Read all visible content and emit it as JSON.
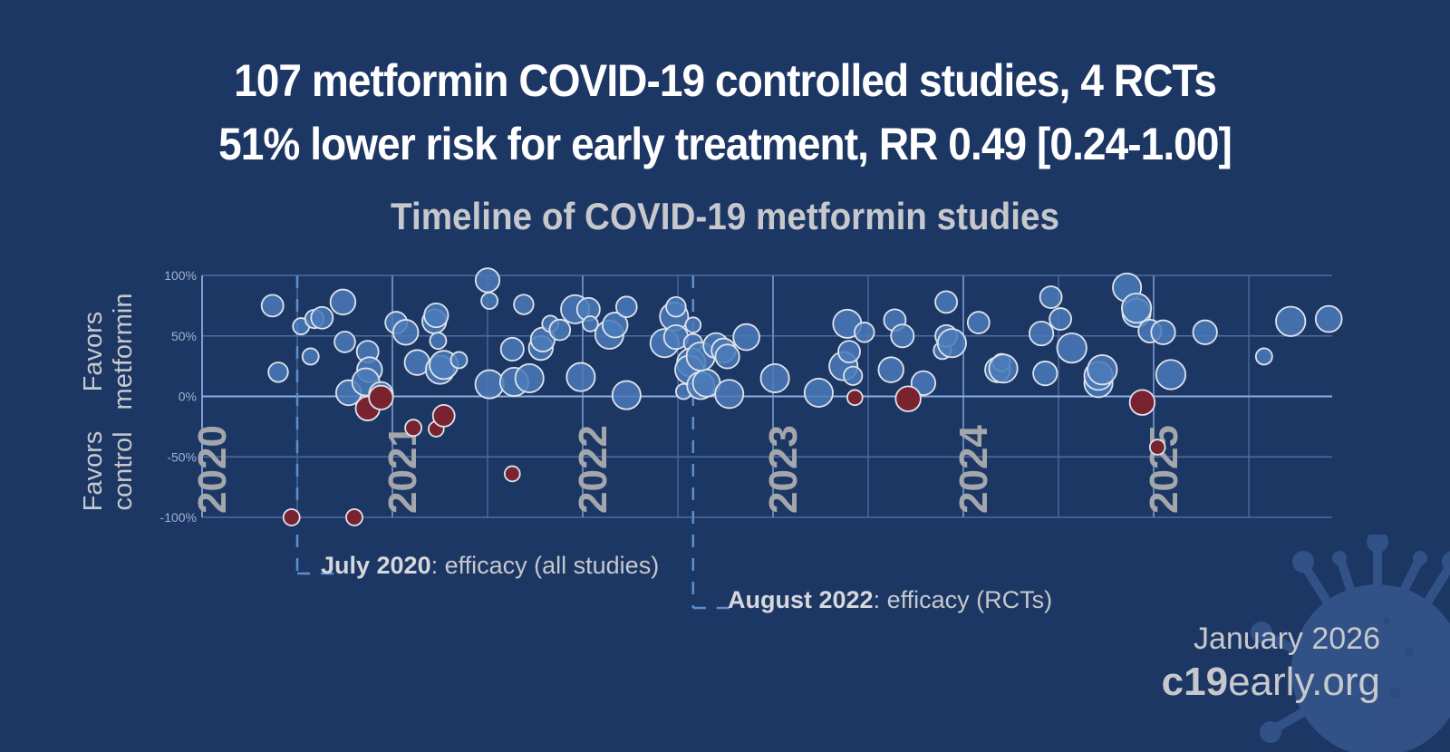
{
  "header": {
    "line1": "107 metformin COVID-19 controlled studies, 4 RCTs",
    "line2": "51% lower risk for early treatment, RR 0.49 [0.24-1.00]"
  },
  "y_side_labels": {
    "top_line1": "Favors",
    "top_line2": "metformin",
    "bottom_line1": "Favors",
    "bottom_line2": "control"
  },
  "annotations": [
    {
      "bold": "July 2020",
      "rest": ": efficacy (all studies)",
      "date": 2020.5
    },
    {
      "bold": "August 2022",
      "rest": ": efficacy (RCTs)",
      "date": 2022.58
    }
  ],
  "footer": {
    "date": "January 2026",
    "site_bold": "c19",
    "site_rest": "early.org",
    "icon": "virus-icon"
  },
  "colors": {
    "background": "#1d3765",
    "positive": "#4a7ab8",
    "negative": "#7a2330",
    "bubble_stroke": "#dfe3ea",
    "gridline": "#4f6da0",
    "zero_line": "#8db0e0",
    "milestone": "#5a8fd0",
    "year_label": "#a3a6ab"
  },
  "chart_data": {
    "type": "scatter",
    "title": "Timeline of COVID-19 metformin studies",
    "xlabel": "",
    "ylabel": "Favors metformin / Favors control",
    "xlim": [
      2020.0,
      2025.95
    ],
    "ylim": [
      -100,
      100
    ],
    "yticks": [
      100,
      50,
      0,
      -50,
      -100
    ],
    "ytick_labels": [
      "100%",
      "50%",
      "0%",
      "-50%",
      "-100%"
    ],
    "year_labels": [
      "2020",
      "2021",
      "2022",
      "2023",
      "2024",
      "2025"
    ],
    "year_label_positions": [
      2020.0,
      2021.0,
      2022.0,
      2023.0,
      2024.0,
      2025.0
    ],
    "grid": true,
    "milestones": [
      2020.5,
      2022.58
    ],
    "points": [
      {
        "x": 2020.37,
        "y": 75,
        "s": 1.0
      },
      {
        "x": 2020.4,
        "y": 20,
        "s": 0.9
      },
      {
        "x": 2020.52,
        "y": 58,
        "s": 0.75
      },
      {
        "x": 2020.57,
        "y": 33,
        "s": 0.75
      },
      {
        "x": 2020.59,
        "y": 64,
        "s": 0.85
      },
      {
        "x": 2020.63,
        "y": 65,
        "s": 1.0
      },
      {
        "x": 2020.74,
        "y": 78,
        "s": 1.15
      },
      {
        "x": 2020.75,
        "y": 45,
        "s": 0.95
      },
      {
        "x": 2020.77,
        "y": 3,
        "s": 1.15
      },
      {
        "x": 2020.87,
        "y": 37,
        "s": 1.0
      },
      {
        "x": 2020.88,
        "y": 22,
        "s": 1.15
      },
      {
        "x": 2020.86,
        "y": 12,
        "s": 1.25
      },
      {
        "x": 2020.94,
        "y": 2,
        "s": 1.1
      },
      {
        "x": 2021.02,
        "y": 61,
        "s": 1.0
      },
      {
        "x": 2021.07,
        "y": 53,
        "s": 1.15
      },
      {
        "x": 2021.13,
        "y": 28,
        "s": 1.15
      },
      {
        "x": 2021.22,
        "y": 62,
        "s": 1.1
      },
      {
        "x": 2021.23,
        "y": 67,
        "s": 1.1
      },
      {
        "x": 2021.24,
        "y": 46,
        "s": 0.75
      },
      {
        "x": 2021.25,
        "y": 22,
        "s": 1.3
      },
      {
        "x": 2021.27,
        "y": 26,
        "s": 1.3
      },
      {
        "x": 2021.35,
        "y": 30,
        "s": 0.75
      },
      {
        "x": 2021.5,
        "y": 96,
        "s": 1.1
      },
      {
        "x": 2021.51,
        "y": 79,
        "s": 0.75
      },
      {
        "x": 2021.51,
        "y": 10,
        "s": 1.3
      },
      {
        "x": 2021.63,
        "y": 39,
        "s": 1.05
      },
      {
        "x": 2021.64,
        "y": 12,
        "s": 1.3
      },
      {
        "x": 2021.69,
        "y": 76,
        "s": 0.9
      },
      {
        "x": 2021.72,
        "y": 15,
        "s": 1.3
      },
      {
        "x": 2021.78,
        "y": 40,
        "s": 1.1
      },
      {
        "x": 2021.79,
        "y": 47,
        "s": 1.1
      },
      {
        "x": 2021.83,
        "y": 60,
        "s": 0.75
      },
      {
        "x": 2021.88,
        "y": 55,
        "s": 0.95
      },
      {
        "x": 2021.96,
        "y": 72,
        "s": 1.3
      },
      {
        "x": 2021.99,
        "y": 16,
        "s": 1.3
      },
      {
        "x": 2022.03,
        "y": 72,
        "s": 1.05
      },
      {
        "x": 2022.04,
        "y": 60,
        "s": 0.7
      },
      {
        "x": 2022.14,
        "y": 51,
        "s": 1.3
      },
      {
        "x": 2022.17,
        "y": 59,
        "s": 1.15
      },
      {
        "x": 2022.23,
        "y": 74,
        "s": 0.95
      },
      {
        "x": 2022.23,
        "y": 1,
        "s": 1.3
      },
      {
        "x": 2022.43,
        "y": 44,
        "s": 1.3
      },
      {
        "x": 2022.48,
        "y": 66,
        "s": 1.3
      },
      {
        "x": 2022.49,
        "y": 74,
        "s": 0.9
      },
      {
        "x": 2022.49,
        "y": 49,
        "s": 1.1
      },
      {
        "x": 2022.58,
        "y": 59,
        "s": 0.7
      },
      {
        "x": 2022.58,
        "y": 44,
        "s": 0.85
      },
      {
        "x": 2022.57,
        "y": 28,
        "s": 1.3
      },
      {
        "x": 2022.56,
        "y": 22,
        "s": 1.3
      },
      {
        "x": 2022.53,
        "y": 4,
        "s": 0.7
      },
      {
        "x": 2022.62,
        "y": 9,
        "s": 1.25
      },
      {
        "x": 2022.65,
        "y": 11,
        "s": 1.25
      },
      {
        "x": 2022.62,
        "y": 33,
        "s": 1.3
      },
      {
        "x": 2022.7,
        "y": 42,
        "s": 1.15
      },
      {
        "x": 2022.74,
        "y": 38,
        "s": 1.1
      },
      {
        "x": 2022.76,
        "y": 33,
        "s": 1.1
      },
      {
        "x": 2022.77,
        "y": 2,
        "s": 1.3
      },
      {
        "x": 2022.86,
        "y": 49,
        "s": 1.2
      },
      {
        "x": 2023.01,
        "y": 15,
        "s": 1.3
      },
      {
        "x": 2023.24,
        "y": 3,
        "s": 1.3
      },
      {
        "x": 2023.37,
        "y": 25,
        "s": 1.3
      },
      {
        "x": 2023.39,
        "y": 60,
        "s": 1.3
      },
      {
        "x": 2023.4,
        "y": 37,
        "s": 1.0
      },
      {
        "x": 2023.42,
        "y": 17,
        "s": 0.85
      },
      {
        "x": 2023.48,
        "y": 53,
        "s": 0.9
      },
      {
        "x": 2023.62,
        "y": 22,
        "s": 1.15
      },
      {
        "x": 2023.64,
        "y": 63,
        "s": 1.0
      },
      {
        "x": 2023.68,
        "y": 50,
        "s": 1.05
      },
      {
        "x": 2023.79,
        "y": 11,
        "s": 1.1
      },
      {
        "x": 2023.89,
        "y": 38,
        "s": 0.8
      },
      {
        "x": 2023.91,
        "y": 50,
        "s": 1.0
      },
      {
        "x": 2023.91,
        "y": 78,
        "s": 1.0
      },
      {
        "x": 2023.94,
        "y": 44,
        "s": 1.3
      },
      {
        "x": 2024.08,
        "y": 61,
        "s": 1.0
      },
      {
        "x": 2024.18,
        "y": 22,
        "s": 1.15
      },
      {
        "x": 2024.2,
        "y": 28,
        "s": 0.8
      },
      {
        "x": 2024.21,
        "y": 23,
        "s": 1.3
      },
      {
        "x": 2024.41,
        "y": 52,
        "s": 1.1
      },
      {
        "x": 2024.43,
        "y": 19,
        "s": 1.1
      },
      {
        "x": 2024.46,
        "y": 82,
        "s": 1.0
      },
      {
        "x": 2024.51,
        "y": 64,
        "s": 1.0
      },
      {
        "x": 2024.57,
        "y": 40,
        "s": 1.35
      },
      {
        "x": 2024.71,
        "y": 11,
        "s": 1.3
      },
      {
        "x": 2024.71,
        "y": 17,
        "s": 1.3
      },
      {
        "x": 2024.73,
        "y": 22,
        "s": 1.35
      },
      {
        "x": 2024.86,
        "y": 90,
        "s": 1.3
      },
      {
        "x": 2024.91,
        "y": 69,
        "s": 1.3
      },
      {
        "x": 2024.91,
        "y": 73,
        "s": 1.35
      },
      {
        "x": 2024.98,
        "y": 54,
        "s": 1.05
      },
      {
        "x": 2025.05,
        "y": 53,
        "s": 1.1
      },
      {
        "x": 2025.09,
        "y": 18,
        "s": 1.35
      },
      {
        "x": 2025.27,
        "y": 53,
        "s": 1.1
      },
      {
        "x": 2025.58,
        "y": 33,
        "s": 0.75
      },
      {
        "x": 2025.72,
        "y": 62,
        "s": 1.35
      },
      {
        "x": 2025.92,
        "y": 64,
        "s": 1.2
      },
      {
        "x": 2020.47,
        "y": -100,
        "s": 0.75,
        "neg": true
      },
      {
        "x": 2020.8,
        "y": -100,
        "s": 0.75,
        "neg": true
      },
      {
        "x": 2020.87,
        "y": -10,
        "s": 1.1,
        "neg": true
      },
      {
        "x": 2020.94,
        "y": -1,
        "s": 1.1,
        "neg": true
      },
      {
        "x": 2021.11,
        "y": -26,
        "s": 0.75,
        "neg": true
      },
      {
        "x": 2021.23,
        "y": -27,
        "s": 0.7,
        "neg": true
      },
      {
        "x": 2021.27,
        "y": -16,
        "s": 1.0,
        "neg": true
      },
      {
        "x": 2021.63,
        "y": -64,
        "s": 0.7,
        "neg": true
      },
      {
        "x": 2023.43,
        "y": -1,
        "s": 0.7,
        "neg": true
      },
      {
        "x": 2023.71,
        "y": -2,
        "s": 1.15,
        "neg": true
      },
      {
        "x": 2024.94,
        "y": -5,
        "s": 1.15,
        "neg": true
      },
      {
        "x": 2025.02,
        "y": -42,
        "s": 0.7,
        "neg": true
      }
    ]
  }
}
